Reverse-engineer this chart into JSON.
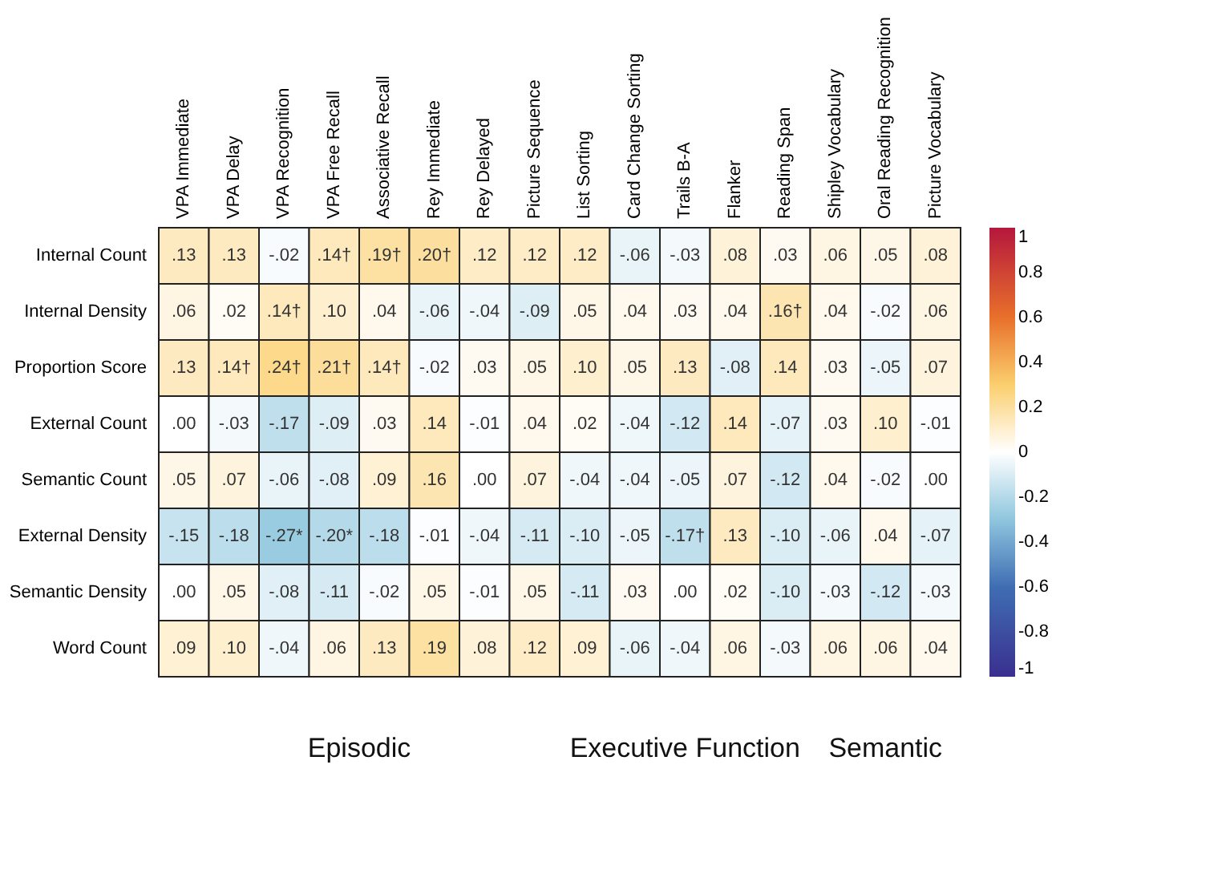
{
  "chart_data": {
    "type": "heatmap",
    "categories": [
      "VPA Immediate",
      "VPA Delay",
      "VPA Recognition",
      "VPA Free Recall",
      "Associative Recall",
      "Rey Immediate",
      "Rey Delayed",
      "Picture Sequence",
      "List Sorting",
      "Card Change Sorting",
      "Trails B-A",
      "Flanker",
      "Reading Span",
      "Shipley Vocabulary",
      "Oral Reading Recognition",
      "Picture Vocabulary"
    ],
    "y_categories": [
      "Internal Count",
      "Internal Density",
      "Proportion Score",
      "External Count",
      "Semantic Count",
      "External Density",
      "Semantic Density",
      "Word Count"
    ],
    "cells": [
      [
        0.13,
        0.13,
        -0.02,
        0.14,
        0.19,
        0.2,
        0.12,
        0.12,
        0.12,
        -0.06,
        -0.03,
        0.08,
        0.03,
        0.06,
        0.05,
        0.08
      ],
      [
        0.06,
        0.02,
        0.14,
        0.1,
        0.04,
        -0.06,
        -0.04,
        -0.09,
        0.05,
        0.04,
        0.03,
        0.04,
        0.16,
        0.04,
        -0.02,
        0.06
      ],
      [
        0.13,
        0.14,
        0.24,
        0.21,
        0.14,
        -0.02,
        0.03,
        0.05,
        0.1,
        0.05,
        0.13,
        -0.08,
        0.14,
        0.03,
        -0.05,
        0.07
      ],
      [
        0.0,
        -0.03,
        -0.17,
        -0.09,
        0.03,
        0.14,
        -0.01,
        0.04,
        0.02,
        -0.04,
        -0.12,
        0.14,
        -0.07,
        0.03,
        0.1,
        -0.01
      ],
      [
        0.05,
        0.07,
        -0.06,
        -0.08,
        0.09,
        0.16,
        0.0,
        0.07,
        -0.04,
        -0.04,
        -0.05,
        0.07,
        -0.12,
        0.04,
        -0.02,
        0.0
      ],
      [
        -0.15,
        -0.18,
        -0.27,
        -0.2,
        -0.18,
        -0.01,
        -0.04,
        -0.11,
        -0.1,
        -0.05,
        -0.17,
        0.13,
        -0.1,
        -0.06,
        0.04,
        -0.07
      ],
      [
        0.0,
        0.05,
        -0.08,
        -0.11,
        -0.02,
        0.05,
        -0.01,
        0.05,
        -0.11,
        0.03,
        0.0,
        0.02,
        -0.1,
        -0.03,
        -0.12,
        -0.03
      ],
      [
        0.09,
        0.1,
        -0.04,
        0.06,
        0.13,
        0.19,
        0.08,
        0.12,
        0.09,
        -0.06,
        -0.04,
        0.06,
        -0.03,
        0.06,
        0.06,
        0.04
      ]
    ],
    "cell_labels": [
      [
        ".13",
        ".13",
        "-.02",
        ".14†",
        ".19†",
        ".20†",
        ".12",
        ".12",
        ".12",
        "-.06",
        "-.03",
        ".08",
        ".03",
        ".06",
        ".05",
        ".08"
      ],
      [
        ".06",
        ".02",
        ".14†",
        ".10",
        ".04",
        "-.06",
        "-.04",
        "-.09",
        ".05",
        ".04",
        ".03",
        ".04",
        ".16†",
        ".04",
        "-.02",
        ".06"
      ],
      [
        ".13",
        ".14†",
        ".24†",
        ".21†",
        ".14†",
        "-.02",
        ".03",
        ".05",
        ".10",
        ".05",
        ".13",
        "-.08",
        ".14",
        ".03",
        "-.05",
        ".07"
      ],
      [
        ".00",
        "-.03",
        "-.17",
        "-.09",
        ".03",
        ".14",
        "-.01",
        ".04",
        ".02",
        "-.04",
        "-.12",
        ".14",
        "-.07",
        ".03",
        ".10",
        "-.01"
      ],
      [
        ".05",
        ".07",
        "-.06",
        "-.08",
        ".09",
        ".16",
        ".00",
        ".07",
        "-.04",
        "-.04",
        "-.05",
        ".07",
        "-.12",
        ".04",
        "-.02",
        ".00"
      ],
      [
        "-.15",
        "-.18",
        "-.27*",
        "-.20*",
        "-.18",
        "-.01",
        "-.04",
        "-.11",
        "-.10",
        "-.05",
        "-.17†",
        ".13",
        "-.10",
        "-.06",
        ".04",
        "-.07"
      ],
      [
        ".00",
        ".05",
        "-.08",
        "-.11",
        "-.02",
        ".05",
        "-.01",
        ".05",
        "-.11",
        ".03",
        ".00",
        ".02",
        "-.10",
        "-.03",
        "-.12",
        "-.03"
      ],
      [
        ".09",
        ".10",
        "-.04",
        ".06",
        ".13",
        ".19",
        ".08",
        ".12",
        ".09",
        "-.06",
        "-.04",
        ".06",
        "-.03",
        ".06",
        ".06",
        ".04"
      ]
    ],
    "clim": [
      -1,
      1
    ],
    "cticks": [
      1,
      0.8,
      0.6,
      0.4,
      0.2,
      0,
      -0.2,
      -0.4,
      -0.6,
      -0.8,
      -1
    ],
    "annotations": [
      "Episodic",
      "Executive Function",
      "Semantic"
    ]
  }
}
